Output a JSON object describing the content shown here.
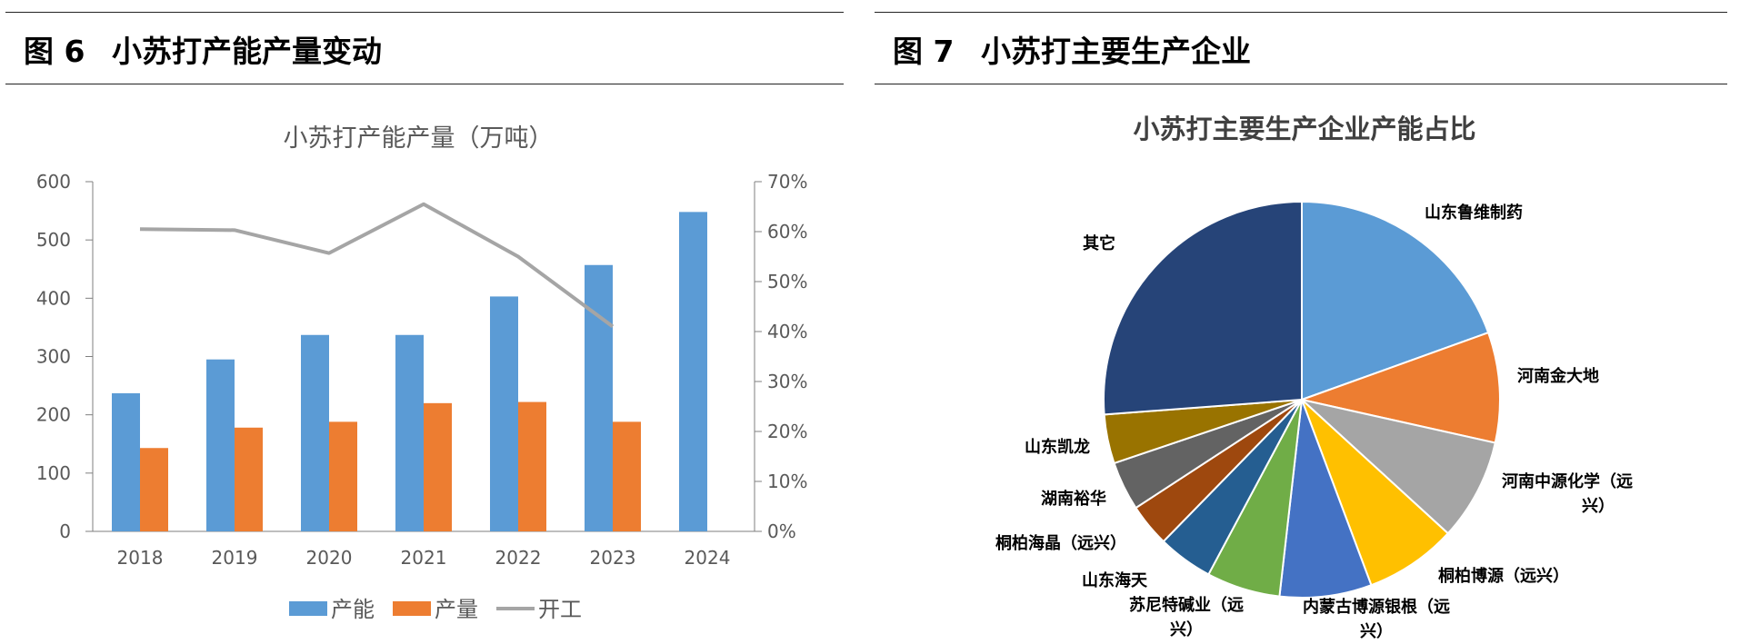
{
  "figures": [
    {
      "prefix": "图",
      "number": "6",
      "title": "小苏打产能产量变动"
    },
    {
      "prefix": "图",
      "number": "7",
      "title": "小苏打主要生产企业"
    }
  ],
  "chart_data": [
    {
      "type": "bar",
      "title": "小苏打产能产量（万吨）",
      "categories": [
        "2018",
        "2019",
        "2020",
        "2021",
        "2022",
        "2023",
        "2024"
      ],
      "series": [
        {
          "name": "产能",
          "kind": "bar",
          "axis": "left",
          "color": "#5b9bd5",
          "values": [
            237,
            295,
            337,
            337,
            403,
            457,
            548
          ]
        },
        {
          "name": "产量",
          "kind": "bar",
          "axis": "left",
          "color": "#ed7d31",
          "values": [
            143,
            178,
            188,
            220,
            222,
            188,
            null
          ]
        },
        {
          "name": "开工",
          "kind": "line",
          "axis": "right",
          "color": "#a5a5a5",
          "values": [
            0.605,
            0.603,
            0.557,
            0.655,
            0.55,
            0.41,
            null
          ]
        }
      ],
      "ylim": [
        0,
        600
      ],
      "y_ticks": [
        "0",
        "100",
        "200",
        "300",
        "400",
        "500",
        "600"
      ],
      "y2lim": [
        0,
        0.7
      ],
      "y2_ticks": [
        "0%",
        "10%",
        "20%",
        "30%",
        "40%",
        "50%",
        "60%",
        "70%"
      ],
      "legend": [
        "产能",
        "产量",
        "开工"
      ],
      "legend_position": "bottom"
    },
    {
      "type": "pie",
      "title": "小苏打主要生产企业产能占比",
      "slices": [
        {
          "label": "山东鲁维制药",
          "value": 0.195,
          "color": "#5b9bd5"
        },
        {
          "label": "河南金大地",
          "value": 0.09,
          "color": "#ed7d31"
        },
        {
          "label": "河南中源化学（远兴）",
          "value": 0.083,
          "color": "#a5a5a5"
        },
        {
          "label": "桐柏博源（远兴）",
          "value": 0.075,
          "color": "#ffc000"
        },
        {
          "label": "内蒙古博源银根（远兴）",
          "value": 0.075,
          "color": "#4472c4"
        },
        {
          "label": "苏尼特碱业（远兴）",
          "value": 0.06,
          "color": "#70ad47"
        },
        {
          "label": "山东海天",
          "value": 0.045,
          "color": "#255e91"
        },
        {
          "label": "桐柏海晶（远兴）",
          "value": 0.035,
          "color": "#9e480e"
        },
        {
          "label": "湖南裕华",
          "value": 0.04,
          "color": "#636363"
        },
        {
          "label": "山东凯龙",
          "value": 0.04,
          "color": "#997300"
        },
        {
          "label": "其它",
          "value": 0.262,
          "color": "#264478"
        }
      ]
    }
  ]
}
